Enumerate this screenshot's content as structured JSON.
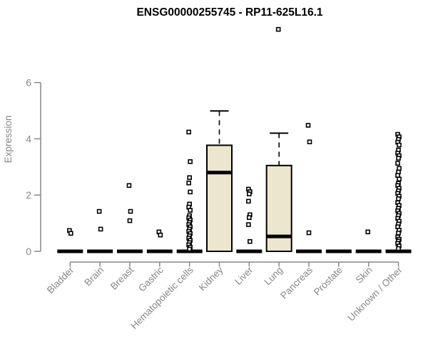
{
  "chart_data": {
    "type": "boxplot",
    "title": "ENSG00000255745 - RP11-625L16.1",
    "ylabel": "Expression",
    "xlabel": "",
    "ylim": [
      0,
      6
    ],
    "yticks": [
      0,
      2,
      4,
      6
    ],
    "grid": false,
    "legend": false,
    "axis_color": "#878787",
    "box_fill_color": "#ECE6CE",
    "box_stroke_color": "#000000",
    "categories": [
      "Bladder",
      "Brain",
      "Breast",
      "Gastric",
      "Hematopoietic cells",
      "Kidney",
      "Liver",
      "Lung",
      "Pancreas",
      "Prostate",
      "Skin",
      "Unknown / Other"
    ],
    "series": [
      {
        "name": "Bladder",
        "q1": 0,
        "median": 0,
        "q3": 0,
        "whisker_low": 0,
        "whisker_high": 0,
        "outliers": [
          0.74,
          0.64
        ]
      },
      {
        "name": "Brain",
        "q1": 0,
        "median": 0,
        "q3": 0,
        "whisker_low": 0,
        "whisker_high": 0,
        "outliers": [
          1.42,
          0.79
        ]
      },
      {
        "name": "Breast",
        "q1": 0,
        "median": 0,
        "q3": 0,
        "whisker_low": 0,
        "whisker_high": 0,
        "outliers": [
          2.34,
          1.42,
          1.09
        ]
      },
      {
        "name": "Gastric",
        "q1": 0,
        "median": 0,
        "q3": 0,
        "whisker_low": 0,
        "whisker_high": 0,
        "outliers": [
          0.69,
          0.58
        ]
      },
      {
        "name": "Hematopoietic cells",
        "q1": 0,
        "median": 0,
        "q3": 0,
        "whisker_low": 0,
        "whisker_high": 0,
        "outliers": [
          4.24,
          3.19,
          2.62,
          2.43,
          2.11,
          1.68,
          1.57,
          1.46,
          1.27,
          1.19,
          1.11,
          1.03,
          0.95,
          0.87,
          0.79,
          0.71,
          0.63,
          0.55,
          0.47,
          0.39,
          0.31,
          0.23,
          0.15,
          0.08
        ]
      },
      {
        "name": "Kidney",
        "q1": 0,
        "median": 2.8,
        "q3": 3.77,
        "whisker_low": 0,
        "whisker_high": 4.99,
        "outliers": []
      },
      {
        "name": "Liver",
        "q1": 0,
        "median": 0,
        "q3": 0,
        "whisker_low": 0,
        "whisker_high": 0,
        "outliers": [
          2.21,
          2.12,
          2.04,
          1.78,
          1.3,
          1.2,
          0.95,
          0.35
        ]
      },
      {
        "name": "Lung",
        "q1": 0,
        "median": 0.53,
        "q3": 3.05,
        "whisker_low": 0,
        "whisker_high": 4.2,
        "outliers": [
          7.89
        ]
      },
      {
        "name": "Pancreas",
        "q1": 0,
        "median": 0,
        "q3": 0,
        "whisker_low": 0,
        "whisker_high": 0,
        "outliers": [
          4.48,
          3.89,
          0.66
        ]
      },
      {
        "name": "Prostate",
        "q1": 0,
        "median": 0,
        "q3": 0,
        "whisker_low": 0,
        "whisker_high": 0,
        "outliers": []
      },
      {
        "name": "Skin",
        "q1": 0,
        "median": 0,
        "q3": 0,
        "whisker_low": 0,
        "whisker_high": 0,
        "outliers": [
          0.69
        ]
      },
      {
        "name": "Unknown / Other",
        "q1": 0,
        "median": 0,
        "q3": 0,
        "whisker_low": 0,
        "whisker_high": 0,
        "outliers": [
          4.16,
          4.07,
          3.98,
          3.88,
          3.78,
          3.6,
          3.49,
          3.4,
          3.31,
          3.13,
          2.95,
          2.82,
          2.7,
          2.57,
          2.42,
          2.34,
          2.24,
          2.15,
          2.06,
          1.96,
          1.87,
          1.73,
          1.63,
          1.53,
          1.44,
          1.35,
          1.27,
          1.17,
          1.07,
          0.97,
          0.87,
          0.75,
          0.65,
          0.51,
          0.43,
          0.36,
          0.28,
          0.19,
          0.1
        ]
      }
    ]
  }
}
